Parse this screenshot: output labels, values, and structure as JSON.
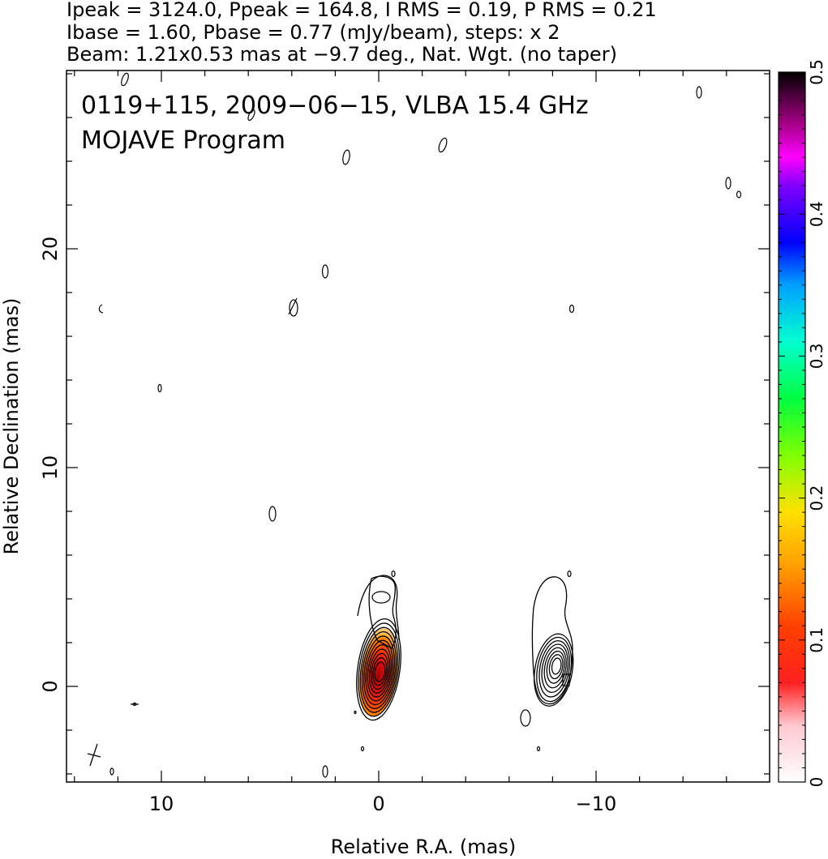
{
  "header": {
    "line1": "Ipeak = 3124.0, Ppeak = 164.8, I RMS = 0.19, P RMS = 0.21",
    "line2": "Ibase = 1.60, Pbase = 0.77 (mJy/beam), steps: x 2",
    "line3": "Beam: 1.21x0.53 mas at −9.7 deg., Nat. Wgt. (no taper)"
  },
  "chart_data": {
    "type": "contour",
    "title": "0119+115, 2009−06−15, VLBA 15.4 GHz",
    "subtitle": "MOJAVE Program",
    "xlabel": "Relative R.A. (mas)",
    "ylabel": "Relative Declination (mas)",
    "xlim": [
      14.5,
      -18
    ],
    "ylim": [
      -4.5,
      28
    ],
    "x_ticks": [
      10,
      0,
      -10
    ],
    "x_tick_labels": [
      "10",
      "0",
      "−10"
    ],
    "y_ticks": [
      0,
      10,
      20
    ],
    "y_tick_labels": [
      "0",
      "10",
      "20"
    ],
    "colorbar": {
      "range": [
        0,
        0.5
      ],
      "ticks": [
        0,
        0.1,
        0.2,
        0.3,
        0.4,
        0.5
      ],
      "tick_labels": [
        "0",
        "0.1",
        "0.2",
        "0.3",
        "0.4",
        "0.5"
      ]
    },
    "components": [
      {
        "x": 0.0,
        "y": 0.7,
        "levels": 11,
        "peak": 3124.0
      },
      {
        "x": -7.9,
        "y": 0.9,
        "levels": 8
      }
    ],
    "beam": {
      "major": 1.21,
      "minor": 0.53,
      "pa": -9.7
    }
  }
}
